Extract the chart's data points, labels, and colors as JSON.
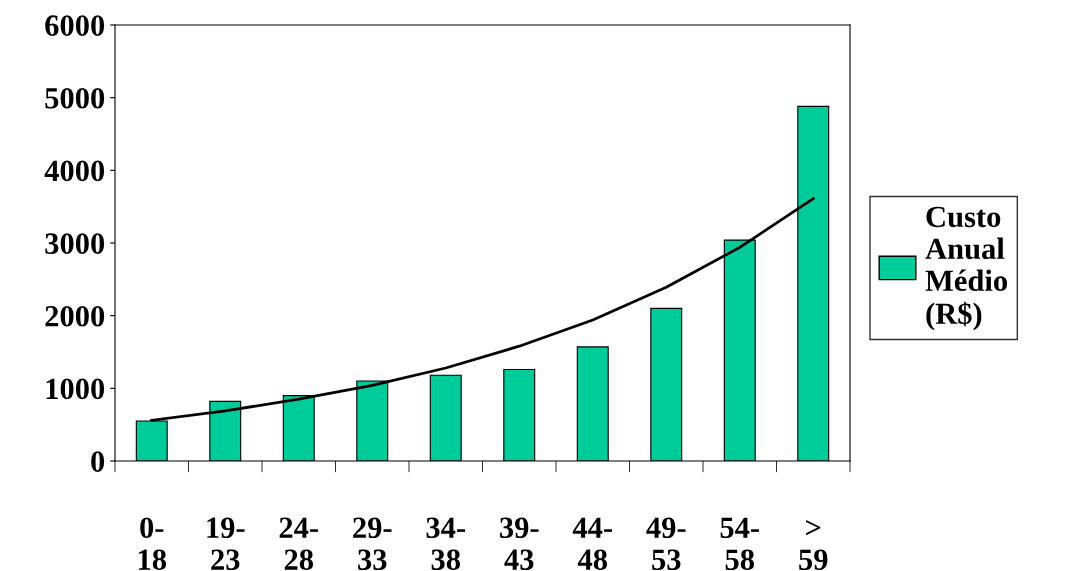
{
  "chart_data": {
    "type": "bar",
    "categories": [
      "0-\n18",
      "19-\n23",
      "24-\n28",
      "29-\n33",
      "34-\n38",
      "39-\n43",
      "44-\n48",
      "49-\n53",
      "54-\n58",
      ">\n59"
    ],
    "series": [
      {
        "name": "Custo\nAnual\nMédio\n(R$)",
        "color": "#00cc99",
        "values": [
          550,
          820,
          900,
          1100,
          1180,
          1260,
          1570,
          2100,
          3040,
          4880
        ]
      },
      {
        "type": "line",
        "color": "#000000",
        "values": [
          560,
          690,
          850,
          1040,
          1280,
          1580,
          1940,
          2390,
          2940,
          3610
        ]
      }
    ],
    "ylim": [
      0,
      6000
    ],
    "yticks": [
      0,
      1000,
      2000,
      3000,
      4000,
      5000,
      6000
    ],
    "grid": false,
    "legend": "right"
  }
}
